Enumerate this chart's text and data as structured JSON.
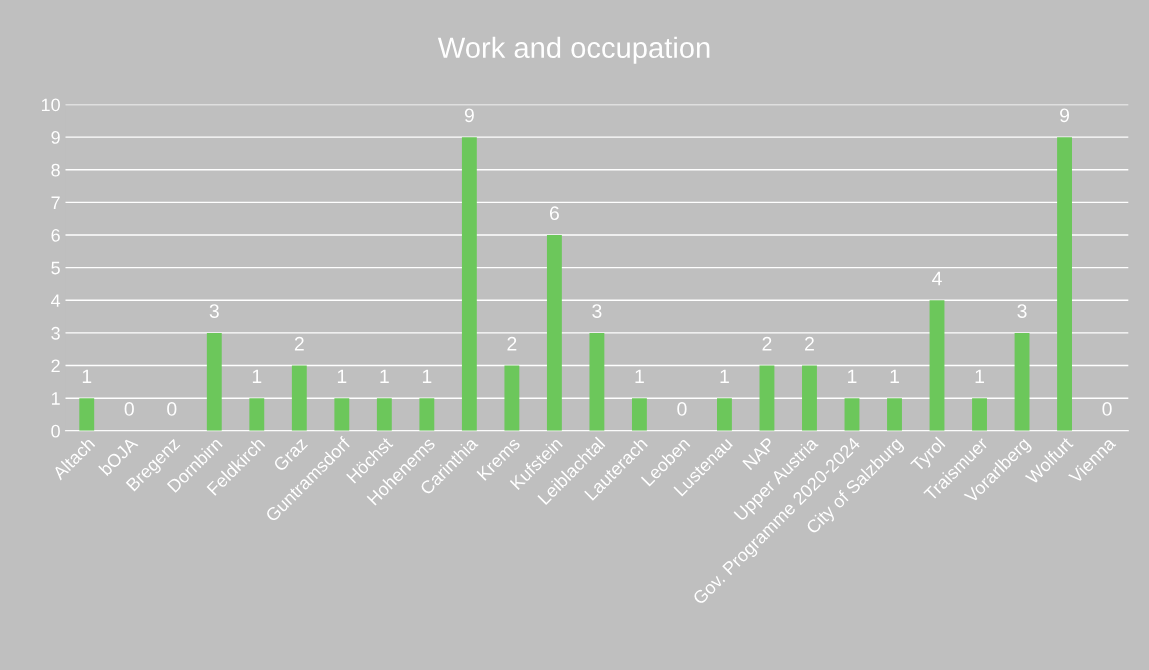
{
  "chart_data": {
    "type": "bar",
    "title": "Work and occupation",
    "categories": [
      "Altach",
      "bOJA",
      "Bregenz",
      "Dornbirn",
      "Feldkirch",
      "Graz",
      "Guntramsdorf",
      "Höchst",
      "Hohenems",
      "Carinthia",
      "Krems",
      "Kufstein",
      "Leiblachtal",
      "Lauterach",
      "Leoben",
      "Lustenau",
      "NAP",
      "Upper Austria",
      "Gov. Programme 2020-2024",
      "City of Salzburg",
      "Tyrol",
      "Traismuer",
      "Vorarlberg",
      "Wolfurt",
      "Vienna"
    ],
    "values": [
      1,
      0,
      0,
      3,
      1,
      2,
      1,
      1,
      1,
      9,
      2,
      6,
      3,
      1,
      0,
      1,
      2,
      2,
      1,
      1,
      4,
      1,
      3,
      9,
      0
    ],
    "color": "#6cc75b",
    "ylim": [
      0,
      10
    ],
    "yticks": [
      0,
      1,
      2,
      3,
      4,
      5,
      6,
      7,
      8,
      9,
      10
    ],
    "grid": "y",
    "data_labels": true
  }
}
